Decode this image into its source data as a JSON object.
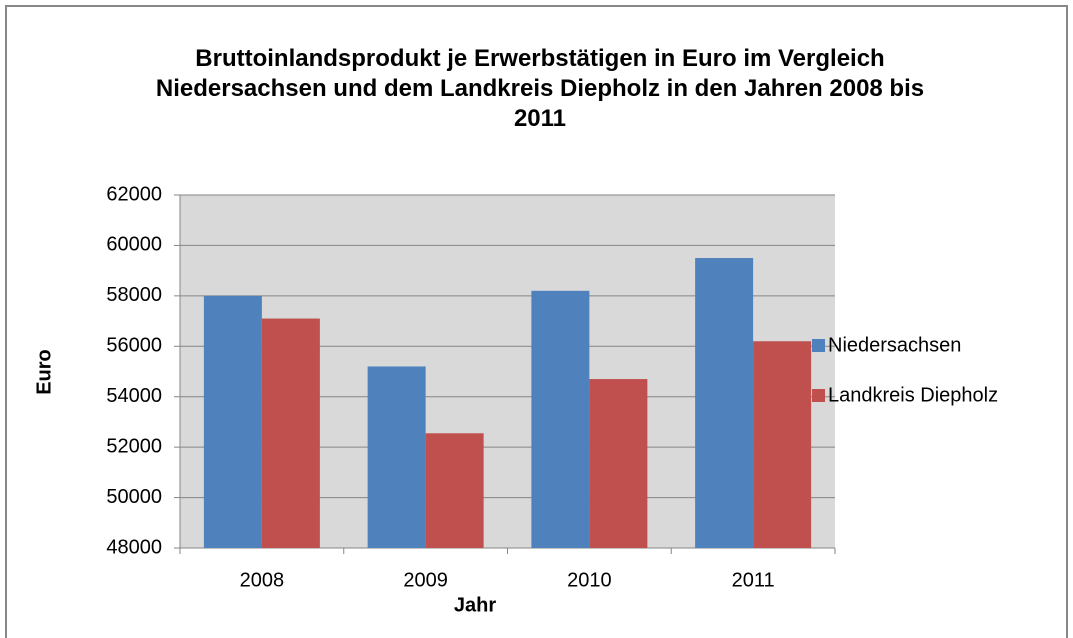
{
  "chart_data": {
    "type": "bar",
    "title": "Bruttoinlandsprodukt je Erwerbstätigen in Euro im Vergleich Niedersachsen und dem Landkreis Diepholz in den Jahren 2008 bis 2011",
    "x_label": "Jahr",
    "y_label": "Euro",
    "categories": [
      "2008",
      "2009",
      "2010",
      "2011"
    ],
    "series": [
      {
        "name": "Niedersachsen",
        "color": "#4f81bd",
        "values": [
          58000,
          55200,
          58200,
          59500
        ]
      },
      {
        "name": "Landkreis Diepholz",
        "color": "#c0504d",
        "values": [
          57100,
          52550,
          54700,
          56200
        ]
      }
    ],
    "ylim": [
      48000,
      62000
    ],
    "yticks": [
      48000,
      50000,
      52000,
      54000,
      56000,
      58000,
      60000,
      62000
    ],
    "grid": true,
    "legend": "right"
  }
}
